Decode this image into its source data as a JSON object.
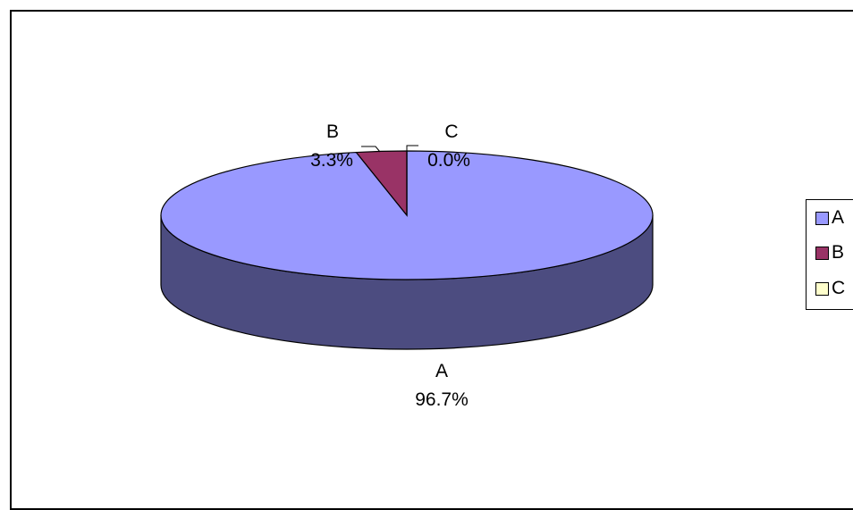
{
  "chart_data": {
    "type": "pie",
    "title": "",
    "three_d": true,
    "categories": [
      "A",
      "B",
      "C"
    ],
    "values": [
      96.7,
      3.3,
      0.0
    ],
    "value_labels": [
      "96.7%",
      "3.3%",
      "0.0%"
    ],
    "colors": [
      "#9999ff",
      "#993366",
      "#ffffcc"
    ],
    "side_colors": [
      "#4c4c80",
      "#4d1a33",
      "#80806a"
    ],
    "legend": {
      "position": "right",
      "items": [
        {
          "label": "A",
          "color": "#9999ff"
        },
        {
          "label": "B",
          "color": "#993366"
        },
        {
          "label": "C",
          "color": "#ffffcc"
        }
      ]
    }
  }
}
